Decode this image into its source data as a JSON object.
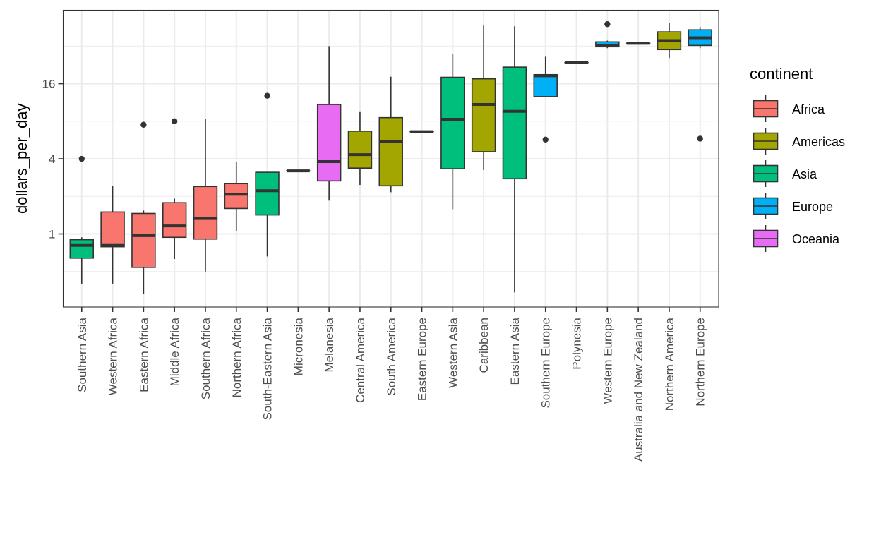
{
  "chart_data": {
    "type": "boxplot",
    "title": "",
    "xlabel": "",
    "ylabel": "dollars_per_day",
    "y_scale": "log2",
    "ylim": [
      0.26,
      62
    ],
    "y_ticks": [
      1,
      4,
      16
    ],
    "y_tick_labels": [
      "1",
      "4",
      "16"
    ],
    "y_minor_ticks": [
      0.5,
      2,
      8,
      32
    ],
    "grid": true,
    "x_label_rotation": 90,
    "legend": {
      "title": "continent",
      "position": "right",
      "entries": [
        {
          "name": "Africa",
          "color": "#F8766D"
        },
        {
          "name": "Americas",
          "color": "#A3A500"
        },
        {
          "name": "Asia",
          "color": "#00BF7D"
        },
        {
          "name": "Europe",
          "color": "#00B0F6"
        },
        {
          "name": "Oceania",
          "color": "#E76BF3"
        }
      ]
    },
    "categories": [
      "Southern Asia",
      "Western Africa",
      "Eastern Africa",
      "Middle Africa",
      "Southern Africa",
      "Northern Africa",
      "South-Eastern Asia",
      "Micronesia",
      "Melanesia",
      "Central America",
      "South America",
      "Eastern Europe",
      "Western Asia",
      "Caribbean",
      "Eastern Asia",
      "Southern Europe",
      "Polynesia",
      "Western Europe",
      "Australia and New Zealand",
      "Northern America",
      "Northern Europe"
    ],
    "boxes": [
      {
        "region": "Southern Asia",
        "continent": "Asia",
        "lower_whisker": 0.4,
        "q1": 0.64,
        "median": 0.81,
        "q3": 0.9,
        "upper_whisker": 0.94,
        "outliers": [
          4.0
        ]
      },
      {
        "region": "Western Africa",
        "continent": "Africa",
        "lower_whisker": 0.4,
        "q1": 0.79,
        "median": 0.81,
        "q3": 1.5,
        "upper_whisker": 2.43,
        "outliers": []
      },
      {
        "region": "Eastern Africa",
        "continent": "Africa",
        "lower_whisker": 0.33,
        "q1": 0.54,
        "median": 0.97,
        "q3": 1.46,
        "upper_whisker": 1.54,
        "outliers": [
          7.5
        ]
      },
      {
        "region": "Middle Africa",
        "continent": "Africa",
        "lower_whisker": 0.63,
        "q1": 0.94,
        "median": 1.16,
        "q3": 1.78,
        "upper_whisker": 1.92,
        "outliers": [
          8.0
        ]
      },
      {
        "region": "Southern Africa",
        "continent": "Africa",
        "lower_whisker": 0.5,
        "q1": 0.91,
        "median": 1.33,
        "q3": 2.4,
        "upper_whisker": 8.4,
        "outliers": []
      },
      {
        "region": "Northern Africa",
        "continent": "Africa",
        "lower_whisker": 1.05,
        "q1": 1.6,
        "median": 2.08,
        "q3": 2.53,
        "upper_whisker": 3.75,
        "outliers": []
      },
      {
        "region": "South-Eastern Asia",
        "continent": "Asia",
        "lower_whisker": 0.66,
        "q1": 1.42,
        "median": 2.22,
        "q3": 3.12,
        "upper_whisker": 3.12,
        "outliers": [
          12.8
        ]
      },
      {
        "region": "Micronesia",
        "continent": "Oceania",
        "lower_whisker": 3.2,
        "q1": 3.2,
        "median": 3.2,
        "q3": 3.2,
        "upper_whisker": 3.2,
        "outliers": []
      },
      {
        "region": "Melanesia",
        "continent": "Oceania",
        "lower_whisker": 1.85,
        "q1": 2.66,
        "median": 3.8,
        "q3": 10.9,
        "upper_whisker": 32.0,
        "outliers": []
      },
      {
        "region": "Central America",
        "continent": "Americas",
        "lower_whisker": 2.47,
        "q1": 3.37,
        "median": 4.32,
        "q3": 6.66,
        "upper_whisker": 9.6,
        "outliers": []
      },
      {
        "region": "South America",
        "continent": "Americas",
        "lower_whisker": 2.16,
        "q1": 2.43,
        "median": 5.48,
        "q3": 8.55,
        "upper_whisker": 18.2,
        "outliers": []
      },
      {
        "region": "Eastern Europe",
        "continent": "Europe",
        "lower_whisker": 6.6,
        "q1": 6.6,
        "median": 6.6,
        "q3": 6.6,
        "upper_whisker": 6.6,
        "outliers": []
      },
      {
        "region": "Western Asia",
        "continent": "Asia",
        "lower_whisker": 1.58,
        "q1": 3.33,
        "median": 8.3,
        "q3": 18.0,
        "upper_whisker": 27.7,
        "outliers": []
      },
      {
        "region": "Caribbean",
        "continent": "Americas",
        "lower_whisker": 3.25,
        "q1": 4.56,
        "median": 10.9,
        "q3": 17.5,
        "upper_whisker": 46.7,
        "outliers": []
      },
      {
        "region": "Eastern Asia",
        "continent": "Asia",
        "lower_whisker": 0.34,
        "q1": 2.77,
        "median": 9.6,
        "q3": 21.7,
        "upper_whisker": 46.1,
        "outliers": []
      },
      {
        "region": "Southern Europe",
        "continent": "Europe",
        "lower_whisker": 12.6,
        "q1": 12.6,
        "median": 18.5,
        "q3": 18.9,
        "upper_whisker": 26.3,
        "outliers": [
          5.7
        ]
      },
      {
        "region": "Polynesia",
        "continent": "Oceania",
        "lower_whisker": 23.6,
        "q1": 23.6,
        "median": 23.6,
        "q3": 23.6,
        "upper_whisker": 23.6,
        "outliers": []
      },
      {
        "region": "Western Europe",
        "continent": "Europe",
        "lower_whisker": 30.8,
        "q1": 31.6,
        "median": 32.4,
        "q3": 34.6,
        "upper_whisker": 35.4,
        "outliers": [
          48.0
        ]
      },
      {
        "region": "Australia and New Zealand",
        "continent": "Oceania",
        "lower_whisker": 33.7,
        "q1": 33.7,
        "median": 33.7,
        "q3": 33.7,
        "upper_whisker": 33.7,
        "outliers": []
      },
      {
        "region": "Northern America",
        "continent": "Americas",
        "lower_whisker": 25.7,
        "q1": 30.0,
        "median": 35.4,
        "q3": 41.6,
        "upper_whisker": 49.3,
        "outliers": []
      },
      {
        "region": "Northern Europe",
        "continent": "Europe",
        "lower_whisker": 30.8,
        "q1": 32.4,
        "median": 37.3,
        "q3": 43.2,
        "upper_whisker": 45.5,
        "outliers": [
          5.8
        ]
      }
    ]
  }
}
